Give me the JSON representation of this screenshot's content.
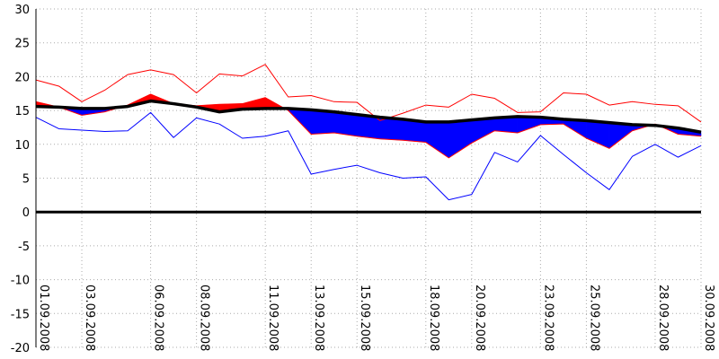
{
  "chart_data": {
    "type": "line",
    "title": "",
    "xlabel": "",
    "ylabel": "",
    "ylim": [
      -20,
      30
    ],
    "yticks": [
      30,
      25,
      20,
      15,
      10,
      5,
      0,
      -5,
      -10,
      -15,
      -20
    ],
    "grid": true,
    "x": [
      "01.09.2008",
      "02.09.2008",
      "03.09.2008",
      "04.09.2008",
      "05.09.2008",
      "06.09.2008",
      "07.09.2008",
      "08.09.2008",
      "09.09.2008",
      "10.09.2008",
      "11.09.2008",
      "12.09.2008",
      "13.09.2008",
      "14.09.2008",
      "15.09.2008",
      "16.09.2008",
      "17.09.2008",
      "18.09.2008",
      "19.09.2008",
      "20.09.2008",
      "21.09.2008",
      "22.09.2008",
      "23.09.2008",
      "24.09.2008",
      "25.09.2008",
      "26.09.2008",
      "27.09.2008",
      "28.09.2008",
      "29.09.2008",
      "30.09.2008"
    ],
    "x_tick_labels": [
      "01.09.2008",
      "03.09.2008",
      "06.09.2008",
      "08.09.2008",
      "11.09.2008",
      "13.09.2008",
      "15.09.2008",
      "18.09.2008",
      "20.09.2008",
      "23.09.2008",
      "25.09.2008",
      "28.09.2008",
      "30.09.2008"
    ],
    "series": [
      {
        "role": "max",
        "color": "#ff0000",
        "values": [
          19.5,
          18.6,
          16.3,
          18.0,
          20.3,
          21.0,
          20.3,
          17.6,
          20.4,
          20.1,
          21.8,
          17.0,
          17.2,
          16.3,
          16.2,
          13.5,
          14.6,
          15.8,
          15.5,
          17.4,
          16.8,
          14.7,
          14.8,
          17.6,
          17.4,
          15.8,
          16.3,
          15.9,
          15.7,
          13.3
        ]
      },
      {
        "role": "mean",
        "color": "#ff0000",
        "values": [
          16.3,
          15.5,
          14.3,
          14.8,
          15.8,
          17.4,
          16.0,
          15.7,
          15.9,
          16.0,
          16.9,
          15.0,
          11.5,
          11.7,
          11.2,
          10.8,
          10.6,
          10.3,
          8.0,
          10.2,
          12.0,
          11.7,
          12.9,
          13.0,
          10.9,
          9.4,
          12.0,
          13.0,
          11.5,
          11.2
        ]
      },
      {
        "role": "normal",
        "color": "#000000",
        "values": [
          15.6,
          15.5,
          15.3,
          15.3,
          15.6,
          16.4,
          16.0,
          15.5,
          14.8,
          15.2,
          15.3,
          15.3,
          15.1,
          14.8,
          14.4,
          14.0,
          13.7,
          13.3,
          13.3,
          13.6,
          13.9,
          14.1,
          14.0,
          13.7,
          13.5,
          13.2,
          12.9,
          12.8,
          12.4,
          11.8
        ]
      },
      {
        "role": "min",
        "color": "#0000ff",
        "values": [
          14.0,
          12.3,
          12.1,
          11.9,
          12.0,
          14.7,
          11.0,
          13.9,
          13.0,
          10.9,
          11.2,
          12.0,
          5.6,
          6.3,
          6.9,
          5.8,
          5.0,
          5.2,
          1.8,
          2.6,
          8.8,
          7.4,
          11.3,
          8.5,
          5.8,
          3.3,
          8.2,
          10.0,
          8.1,
          9.8
        ]
      }
    ]
  }
}
